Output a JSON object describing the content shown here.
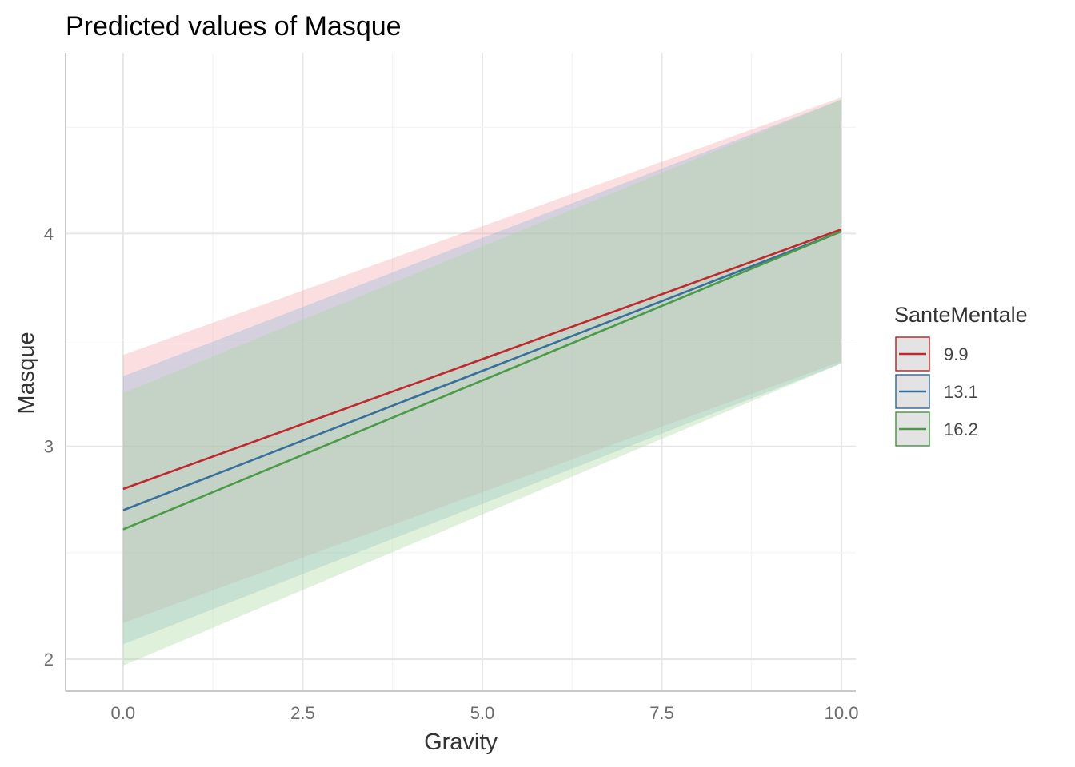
{
  "chart_data": {
    "type": "line",
    "title": "Predicted values of Masque",
    "xlabel": "Gravity",
    "ylabel": "Masque",
    "xlim": [
      -0.8,
      10.2
    ],
    "ylim": [
      1.85,
      4.85
    ],
    "x_ticks": [
      {
        "value": 0,
        "label": "0.0"
      },
      {
        "value": 2.5,
        "label": "2.5"
      },
      {
        "value": 5,
        "label": "5.0"
      },
      {
        "value": 7.5,
        "label": "7.5"
      },
      {
        "value": 10,
        "label": "10.0"
      }
    ],
    "y_ticks": [
      {
        "value": 2,
        "label": "2"
      },
      {
        "value": 3,
        "label": "3"
      },
      {
        "value": 4,
        "label": "4"
      }
    ],
    "grid": true,
    "legend": {
      "title": "SanteMentale",
      "position": "right"
    },
    "series": [
      {
        "name": "9.9",
        "color": "#c0282e",
        "fill": "#f4a3aa",
        "points": [
          {
            "x": 0,
            "y": 2.8
          },
          {
            "x": 10,
            "y": 4.02
          }
        ],
        "ci_lower": [
          {
            "x": 0,
            "y": 2.17
          },
          {
            "x": 10,
            "y": 3.4
          }
        ],
        "ci_upper": [
          {
            "x": 0,
            "y": 3.43
          },
          {
            "x": 10,
            "y": 4.64
          }
        ]
      },
      {
        "name": "13.1",
        "color": "#3a6f9c",
        "fill": "#8fb8d8",
        "points": [
          {
            "x": 0,
            "y": 2.7
          },
          {
            "x": 10,
            "y": 4.01
          }
        ],
        "ci_lower": [
          {
            "x": 0,
            "y": 2.07
          },
          {
            "x": 10,
            "y": 3.39
          }
        ],
        "ci_upper": [
          {
            "x": 0,
            "y": 3.33
          },
          {
            "x": 10,
            "y": 4.63
          }
        ]
      },
      {
        "name": "16.2",
        "color": "#4a9a48",
        "fill": "#a8d89a",
        "points": [
          {
            "x": 0,
            "y": 2.61
          },
          {
            "x": 10,
            "y": 4.01
          }
        ],
        "ci_lower": [
          {
            "x": 0,
            "y": 1.97
          },
          {
            "x": 10,
            "y": 3.39
          }
        ],
        "ci_upper": [
          {
            "x": 0,
            "y": 3.25
          },
          {
            "x": 10,
            "y": 4.63
          }
        ]
      }
    ]
  }
}
